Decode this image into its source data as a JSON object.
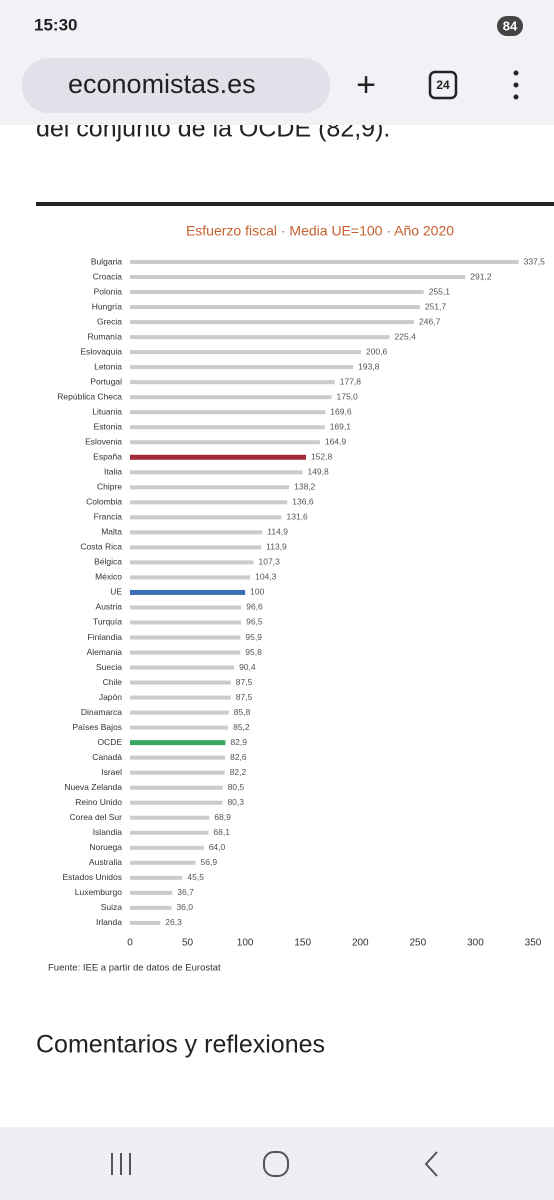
{
  "status_bar": {
    "time": "15:30",
    "battery": "84"
  },
  "browser": {
    "url": "economistas.es",
    "tabs": "24"
  },
  "article": {
    "intro_text": "del conjunto de la OCDE (82,9).",
    "heading": "Comentarios y reflexiones"
  },
  "chart_data": {
    "type": "hbar",
    "title": "Esfuerzo fiscal · Media UE=100 · Año 2020",
    "categories": [
      "Bulgaria",
      "Croacia",
      "Polonia",
      "Hungría",
      "Grecia",
      "Rumanía",
      "Eslovaquia",
      "Letonia",
      "Portugal",
      "República Checa",
      "Lituania",
      "Estonia",
      "Eslovenia",
      "España",
      "Italia",
      "Chipre",
      "Colombia",
      "Francia",
      "Malta",
      "Costa Rica",
      "Bélgica",
      "México",
      "UE",
      "Austria",
      "Turquía",
      "Finlandia",
      "Alemania",
      "Suecia",
      "Chile",
      "Japón",
      "Dinamarca",
      "Países Bajos",
      "OCDE",
      "Canadá",
      "Israel",
      "Nueva Zelanda",
      "Reino Unido",
      "Corea del Sur",
      "Islandia",
      "Noruega",
      "Australia",
      "Estados Unidos",
      "Luxemburgo",
      "Suiza",
      "Irlanda"
    ],
    "values": [
      337.5,
      291.2,
      255.1,
      251.7,
      246.7,
      225.4,
      200.6,
      193.8,
      177.8,
      175.0,
      169.6,
      169.1,
      164.9,
      152.8,
      149.8,
      138.2,
      136.6,
      131.6,
      114.9,
      113.9,
      107.3,
      104.3,
      100,
      96.6,
      96.5,
      95.9,
      95.8,
      90.4,
      87.5,
      87.5,
      85.8,
      85.2,
      82.9,
      82.6,
      82.2,
      80.5,
      80.3,
      68.9,
      68.1,
      64.0,
      56.9,
      45.5,
      36.7,
      36.0,
      26.3
    ],
    "value_labels": [
      "337,5",
      "291,2",
      "255,1",
      "251,7",
      "246,7",
      "225,4",
      "200,6",
      "193,8",
      "177,8",
      "175,0",
      "169,6",
      "169,1",
      "164,9",
      "152,8",
      "149,8",
      "138,2",
      "136,6",
      "131,6",
      "114,9",
      "113,9",
      "107,3",
      "104,3",
      "100",
      "96,6",
      "96,5",
      "95,9",
      "95,8",
      "90,4",
      "87,5",
      "87,5",
      "85,8",
      "85,2",
      "82,9",
      "82,6",
      "82,2",
      "80,5",
      "80,3",
      "68,9",
      "68,1",
      "64,0",
      "56,9",
      "45,5",
      "36,7",
      "36,0",
      "26,3"
    ],
    "colors": [
      "#cbcbcb",
      "#cbcbcb",
      "#cbcbcb",
      "#cbcbcb",
      "#cbcbcb",
      "#cbcbcb",
      "#cbcbcb",
      "#cbcbcb",
      "#cbcbcb",
      "#cbcbcb",
      "#cbcbcb",
      "#cbcbcb",
      "#cbcbcb",
      "#a3293a",
      "#cbcbcb",
      "#cbcbcb",
      "#cbcbcb",
      "#cbcbcb",
      "#cbcbcb",
      "#cbcbcb",
      "#cbcbcb",
      "#cbcbcb",
      "#3a6fb5",
      "#cbcbcb",
      "#cbcbcb",
      "#cbcbcb",
      "#cbcbcb",
      "#cbcbcb",
      "#cbcbcb",
      "#cbcbcb",
      "#cbcbcb",
      "#cbcbcb",
      "#3aa860",
      "#cbcbcb",
      "#cbcbcb",
      "#cbcbcb",
      "#cbcbcb",
      "#cbcbcb",
      "#cbcbcb",
      "#cbcbcb",
      "#cbcbcb",
      "#cbcbcb",
      "#cbcbcb",
      "#cbcbcb",
      "#cbcbcb"
    ],
    "xlim": [
      0,
      350
    ],
    "xticks": [
      0,
      50,
      100,
      150,
      200,
      250,
      300,
      350
    ],
    "grid": false,
    "source": "Fuente: IEE a partir de datos de Eurostat"
  }
}
